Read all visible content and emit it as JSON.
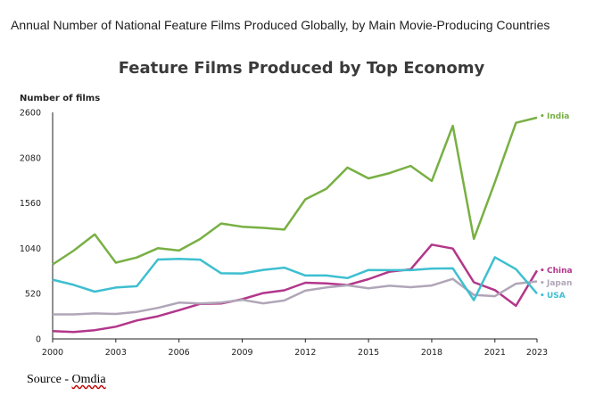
{
  "caption": "Annual Number of National Feature Films Produced Globally, by Main Movie-Producing Countries",
  "source_prefix": "Source - ",
  "source_name": "Omdia",
  "chart_data": {
    "type": "line",
    "title": "Feature Films Produced by Top Economy",
    "ylabel": "Number of films",
    "xlabel": "",
    "ylim": [
      0,
      2600
    ],
    "yticks": [
      0,
      520,
      1040,
      1560,
      2080,
      2600
    ],
    "xticks": [
      2000,
      2003,
      2006,
      2009,
      2012,
      2015,
      2018,
      2021,
      2023
    ],
    "x": [
      2000,
      2001,
      2002,
      2003,
      2004,
      2005,
      2006,
      2007,
      2008,
      2009,
      2010,
      2011,
      2012,
      2013,
      2014,
      2015,
      2016,
      2017,
      2018,
      2019,
      2020,
      2021,
      2022,
      2023
    ],
    "grid": false,
    "series": [
      {
        "name": "India",
        "color": "#78b043",
        "values": [
          855,
          1013,
          1200,
          875,
          935,
          1041,
          1014,
          1146,
          1325,
          1288,
          1274,
          1255,
          1602,
          1724,
          1966,
          1843,
          1903,
          1986,
          1813,
          2446,
          1148,
          1800,
          2480,
          2540
        ]
      },
      {
        "name": "China",
        "color": "#b2378a",
        "values": [
          90,
          80,
          100,
          140,
          212,
          260,
          330,
          402,
          406,
          456,
          526,
          558,
          645,
          638,
          618,
          686,
          772,
          798,
          1082,
          1037,
          650,
          560,
          380,
          785
        ]
      },
      {
        "name": "Japan",
        "color": "#b0a6b8",
        "values": [
          282,
          281,
          293,
          287,
          310,
          356,
          417,
          407,
          418,
          448,
          408,
          441,
          554,
          591,
          615,
          581,
          610,
          594,
          613,
          689,
          506,
          490,
          634,
          660
        ]
      },
      {
        "name": "USA",
        "color": "#3ebfd0",
        "values": [
          680,
          620,
          543,
          590,
          605,
          911,
          918,
          910,
          753,
          751,
          792,
          818,
          728,
          728,
          698,
          791,
          789,
          789,
          808,
          810,
          445,
          938,
          800,
          520
        ]
      }
    ]
  }
}
